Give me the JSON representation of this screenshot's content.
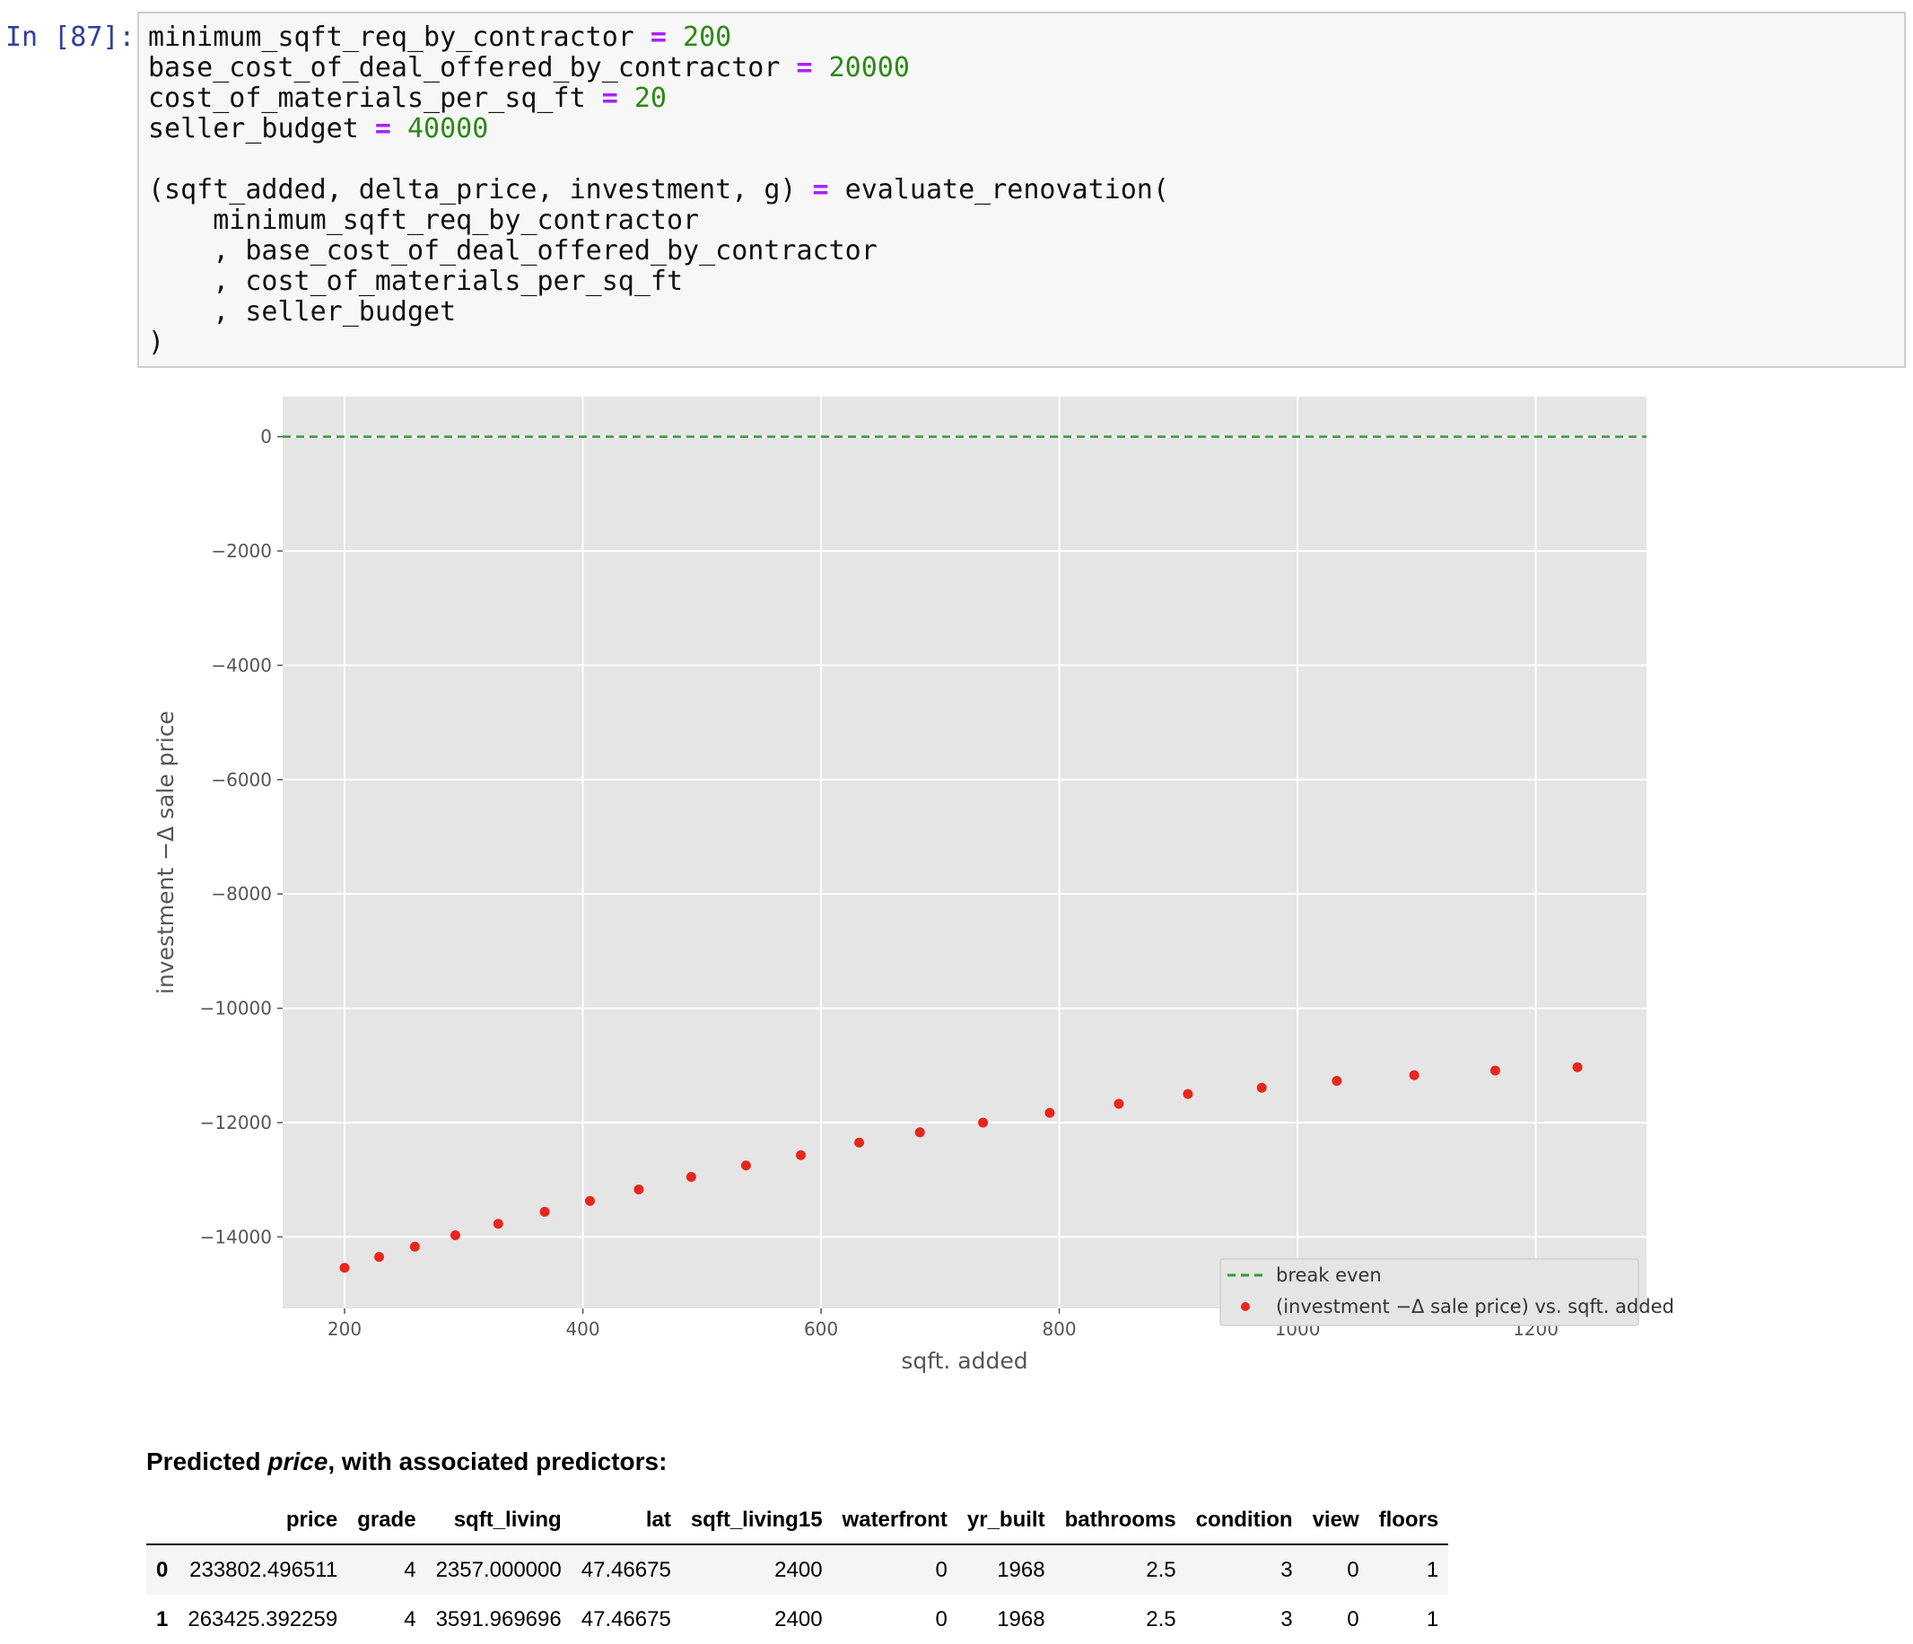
{
  "cell": {
    "prompt": "In [87]:",
    "lines": [
      [
        {
          "t": "minimum_sqft_req_by_contractor "
        },
        {
          "t": "=",
          "c": "op"
        },
        {
          "t": " "
        },
        {
          "t": "200",
          "c": "num"
        }
      ],
      [
        {
          "t": "base_cost_of_deal_offered_by_contractor "
        },
        {
          "t": "=",
          "c": "op"
        },
        {
          "t": " "
        },
        {
          "t": "20000",
          "c": "num"
        }
      ],
      [
        {
          "t": "cost_of_materials_per_sq_ft "
        },
        {
          "t": "=",
          "c": "op"
        },
        {
          "t": " "
        },
        {
          "t": "20",
          "c": "num"
        }
      ],
      [
        {
          "t": "seller_budget "
        },
        {
          "t": "=",
          "c": "op"
        },
        {
          "t": " "
        },
        {
          "t": "40000",
          "c": "num"
        }
      ],
      [
        {
          "t": ""
        }
      ],
      [
        {
          "t": "(sqft_added, delta_price, investment, g) "
        },
        {
          "t": "=",
          "c": "op"
        },
        {
          "t": " evaluate_renovation("
        }
      ],
      [
        {
          "t": "    minimum_sqft_req_by_contractor"
        }
      ],
      [
        {
          "t": "    , base_cost_of_deal_offered_by_contractor"
        }
      ],
      [
        {
          "t": "    , cost_of_materials_per_sq_ft"
        }
      ],
      [
        {
          "t": "    , seller_budget"
        }
      ],
      [
        {
          "t": ")"
        }
      ]
    ]
  },
  "chart_data": {
    "type": "scatter",
    "xlabel": "sqft. added",
    "ylabel": "investment −Δ sale price",
    "xlim": [
      148,
      1293
    ],
    "ylim": [
      -15250,
      700
    ],
    "xticks": [
      200,
      400,
      600,
      800,
      1000,
      1200
    ],
    "yticks": [
      0,
      -2000,
      -4000,
      -6000,
      -8000,
      -10000,
      -12000,
      -14000
    ],
    "xtick_labels": [
      "200",
      "400",
      "600",
      "800",
      "1000",
      "1200"
    ],
    "ytick_labels": [
      "0",
      "−2000",
      "−4000",
      "−6000",
      "−8000",
      "−10000",
      "−12000",
      "−14000"
    ],
    "grid": true,
    "legend_position": "lower-right",
    "hline": {
      "name": "break even",
      "y": 0,
      "color": "#3a9a3a",
      "style": "dashed"
    },
    "series": [
      {
        "name": "(investment −Δ sale price) vs. sqft. added",
        "color": "#e8261c",
        "x": [
          200,
          229,
          259,
          293,
          329,
          368,
          406,
          447,
          491,
          537,
          583,
          632,
          683,
          736,
          792,
          850,
          908,
          970,
          1033,
          1098,
          1166,
          1235
        ],
        "y": [
          -14540,
          -14350,
          -14170,
          -13970,
          -13770,
          -13560,
          -13370,
          -13170,
          -12950,
          -12750,
          -12570,
          -12350,
          -12170,
          -12000,
          -11830,
          -11670,
          -11500,
          -11390,
          -11270,
          -11170,
          -11090,
          -11030
        ]
      }
    ]
  },
  "output": {
    "heading_pre": "Predicted ",
    "heading_em": "price",
    "heading_post": ", with associated predictors:",
    "columns": [
      "",
      "price",
      "grade",
      "sqft_living",
      "lat",
      "sqft_living15",
      "waterfront",
      "yr_built",
      "bathrooms",
      "condition",
      "view",
      "floors"
    ],
    "rows": [
      [
        "0",
        "233802.496511",
        "4",
        "2357.000000",
        "47.46675",
        "2400",
        "0",
        "1968",
        "2.5",
        "3",
        "0",
        "1"
      ],
      [
        "1",
        "263425.392259",
        "4",
        "3591.969696",
        "47.46675",
        "2400",
        "0",
        "1968",
        "2.5",
        "3",
        "0",
        "1"
      ]
    ]
  }
}
